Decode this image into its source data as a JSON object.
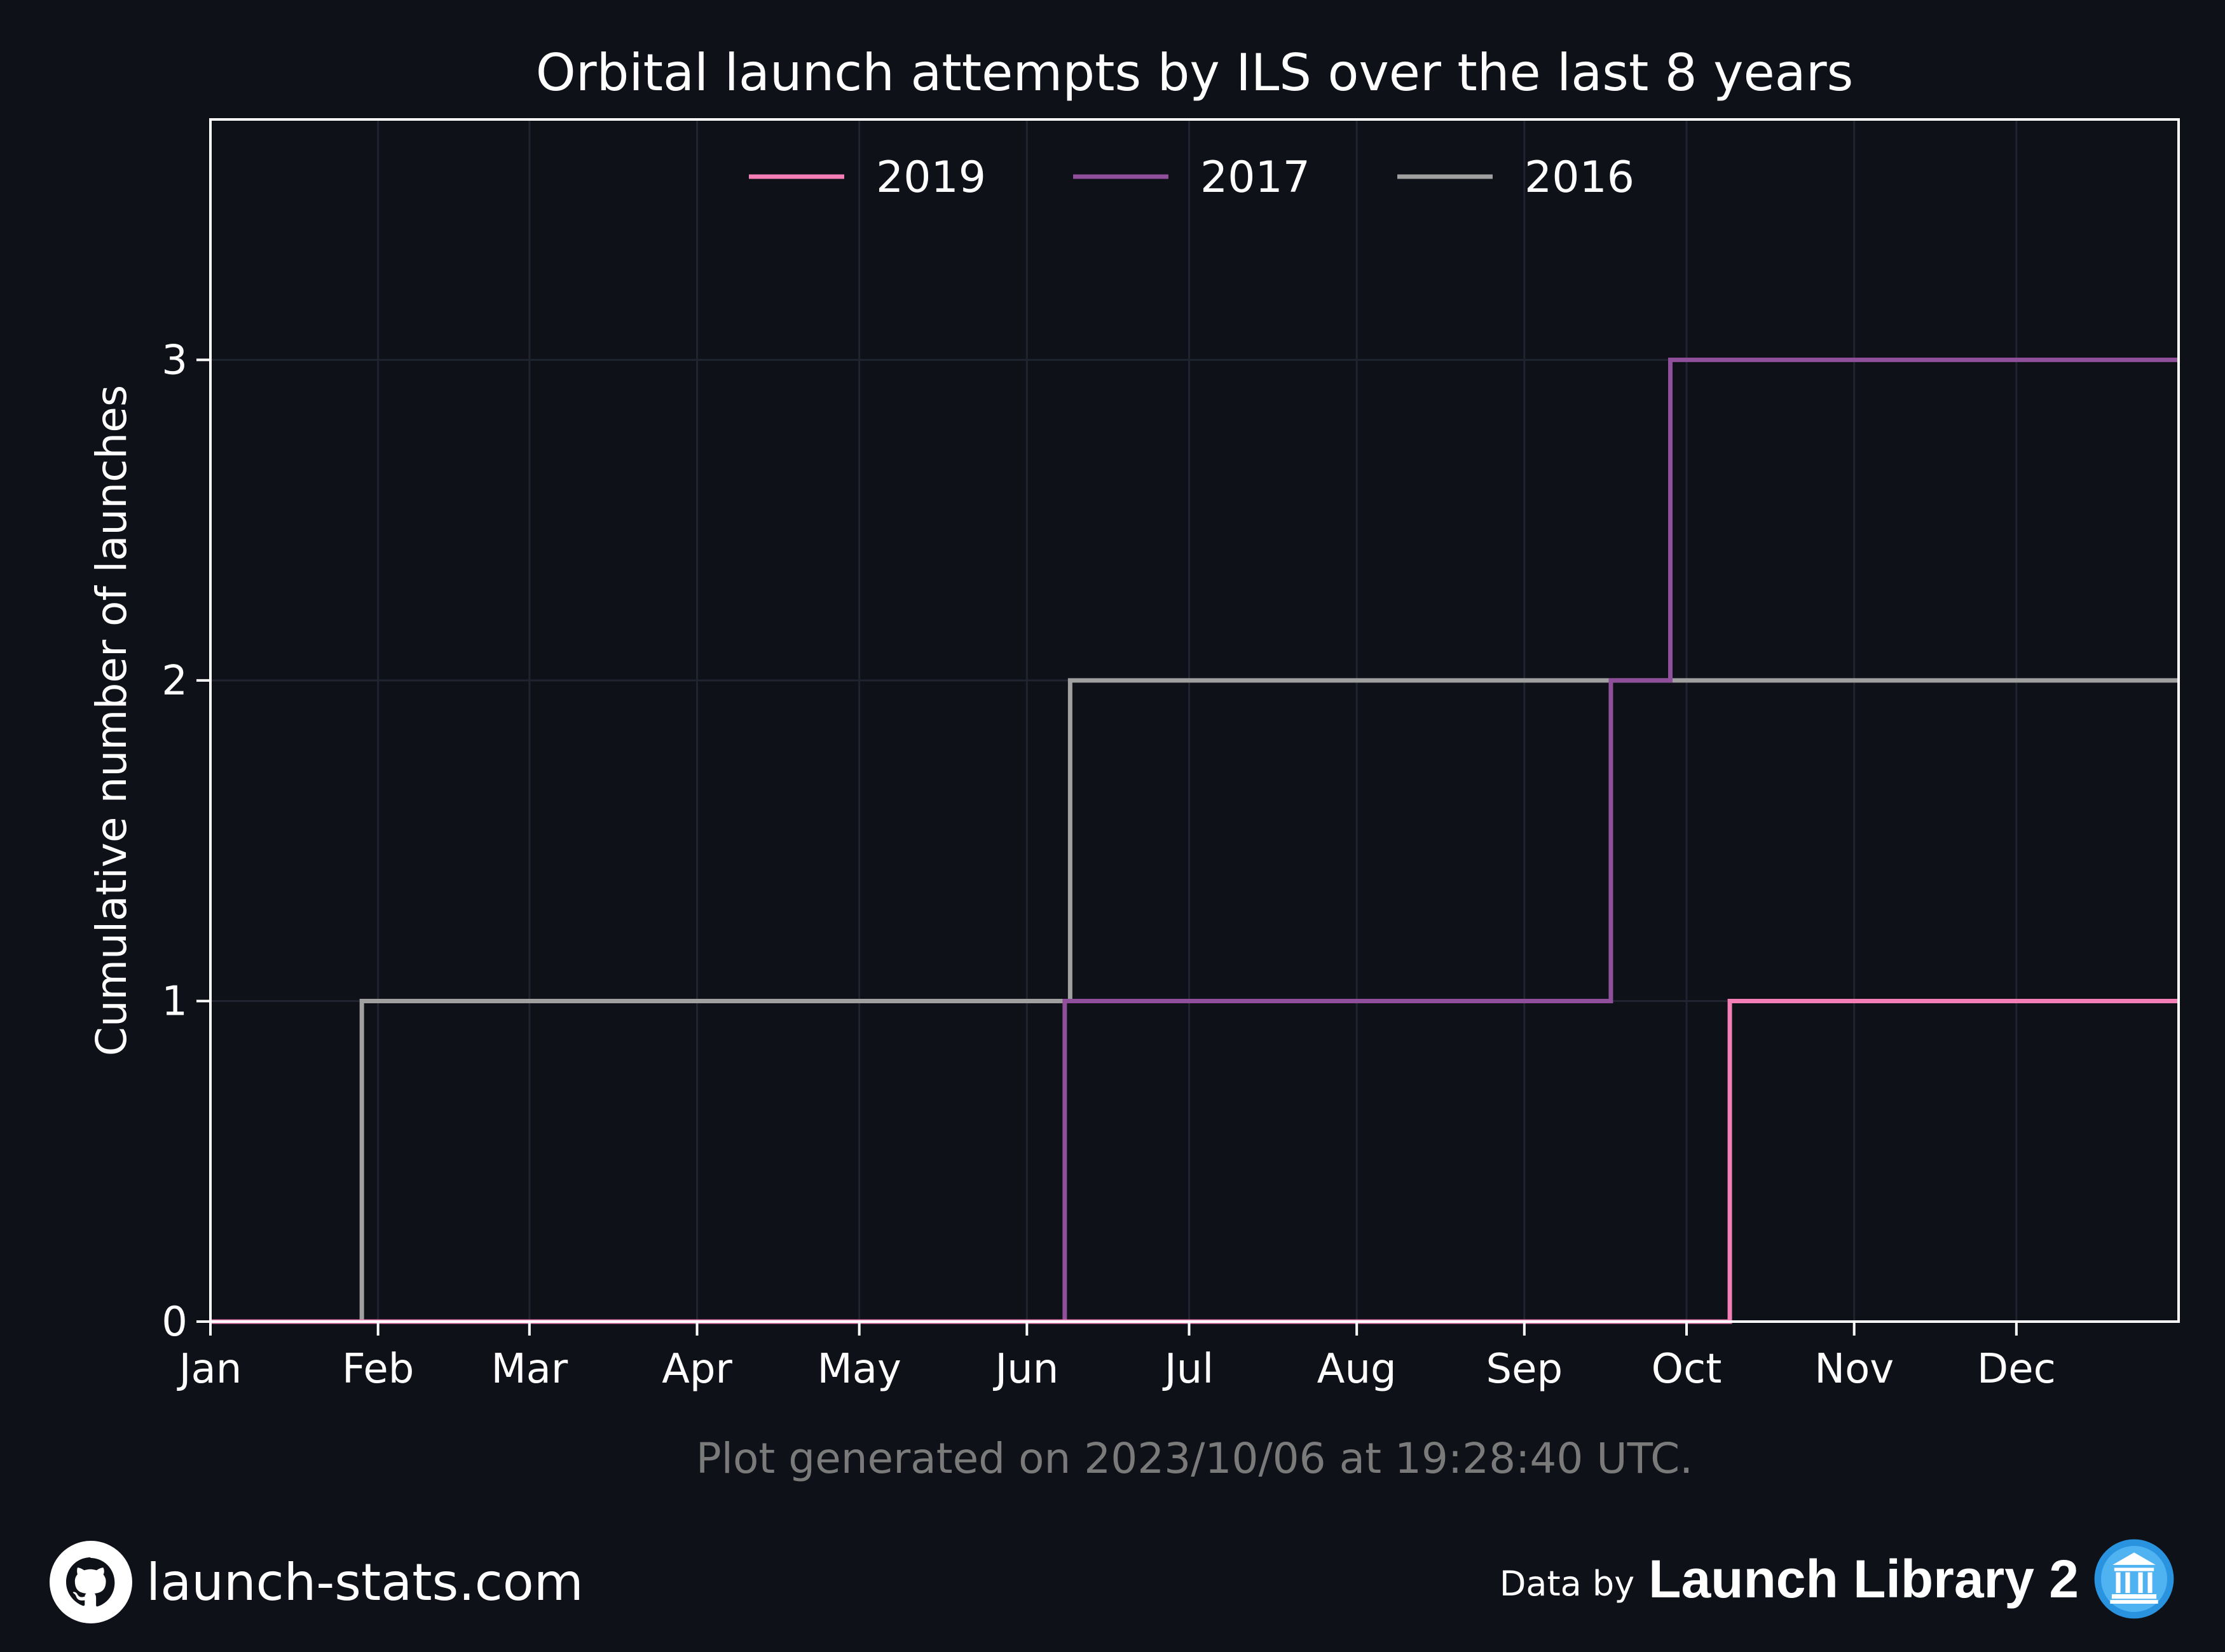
{
  "chart_data": {
    "type": "line",
    "step": true,
    "title": "Orbital launch attempts by ILS over the last 8 years",
    "xlabel": "",
    "ylabel": "Cumulative number of launches",
    "x_tick_labels": [
      "Jan",
      "Feb",
      "Mar",
      "Apr",
      "May",
      "Jun",
      "Jul",
      "Aug",
      "Sep",
      "Oct",
      "Nov",
      "Dec"
    ],
    "y_ticks": [
      0,
      1,
      2,
      3
    ],
    "ylim": [
      0,
      3.75
    ],
    "xlim": [
      "Jan 1",
      "Dec 31"
    ],
    "grid": true,
    "legend_position": "top-center",
    "series": [
      {
        "name": "2019",
        "color": "#f47fb7",
        "points": [
          [
            "Jan 1",
            0
          ],
          [
            "Oct 9",
            1
          ],
          [
            "Dec 31",
            1
          ]
        ]
      },
      {
        "name": "2017",
        "color": "#8f4f9b",
        "points": [
          [
            "Jan 1",
            0
          ],
          [
            "Jun 8",
            1
          ],
          [
            "Sep 17",
            2
          ],
          [
            "Sep 28",
            3
          ],
          [
            "Dec 31",
            3
          ]
        ]
      },
      {
        "name": "2016",
        "color": "#a0a0a0",
        "points": [
          [
            "Jan 1",
            0
          ],
          [
            "Jan 29",
            1
          ],
          [
            "Jun 9",
            2
          ],
          [
            "Dec 31",
            2
          ]
        ]
      }
    ]
  },
  "footer": {
    "generated": "Plot generated on 2023/10/06 at 19:28:40 UTC.",
    "site": "launch-stats.com",
    "data_by": "Data by",
    "source": "Launch Library 2",
    "site_icon": "github-icon",
    "source_icon": "launch-library-icon"
  }
}
